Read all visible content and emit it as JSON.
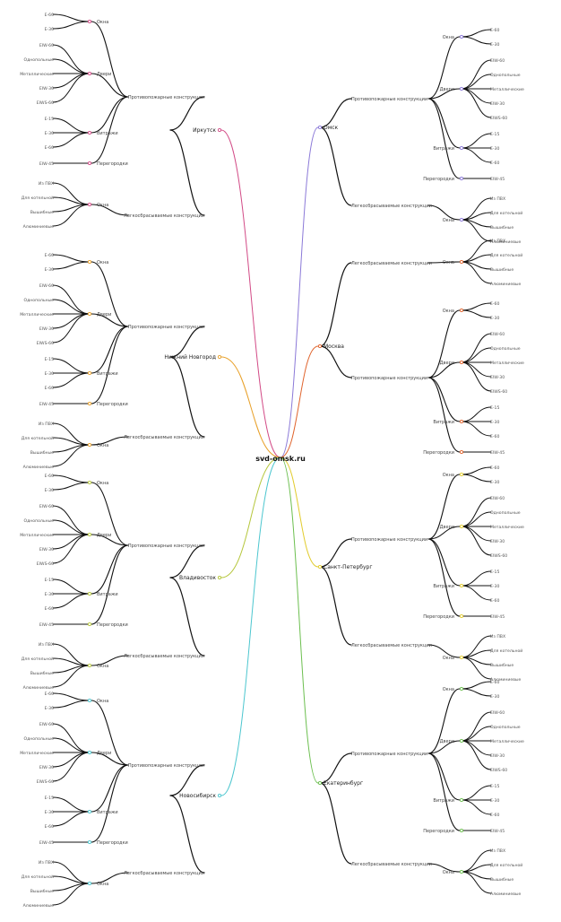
{
  "root": "svd-omsk.ru",
  "palette": {
    "Иркутск": "#d24a86",
    "Нижний Новгород": "#e8a12b",
    "Владивосток": "#b5c63b",
    "Новосибирск": "#4cc6cf",
    "Омск": "#8b79d8",
    "Москва": "#e0642d",
    "Санкт-Петербург": "#e2cc2f",
    "Екатеринбург": "#6cbf4f",
    "dot_red": "#e23a3a"
  },
  "tree": {
    "fire_label": "Противопожарные конструкции",
    "blast_label": "Легкосбрасываемые конструкции",
    "fire_children": [
      {
        "label": "Окна",
        "leaves": [
          "E-60",
          "E-30"
        ]
      },
      {
        "label": "Двери",
        "leaves": [
          "EIW-60",
          "Однопольные",
          "Металлические",
          "EIW-30",
          "EIWS-60"
        ]
      },
      {
        "label": "Витражи",
        "leaves": [
          "E-15",
          "E-30",
          "E-60"
        ]
      },
      {
        "label": "Перегородки",
        "leaves": [
          "EIW-45"
        ]
      }
    ],
    "blast_children": [
      {
        "label": "Окна",
        "leaves": [
          "Из ПВХ",
          "Для котельной",
          "Вышибные",
          "Алюминиевые"
        ]
      }
    ]
  },
  "cities": [
    {
      "name": "Иркутск",
      "side": "left"
    },
    {
      "name": "Нижний Новгород",
      "side": "left"
    },
    {
      "name": "Владивосток",
      "side": "left"
    },
    {
      "name": "Новосибирск",
      "side": "left"
    },
    {
      "name": "Омск",
      "side": "right"
    },
    {
      "name": "Москва",
      "side": "right"
    },
    {
      "name": "Санкт-Петербург",
      "side": "right"
    },
    {
      "name": "Екатеринбург",
      "side": "right"
    }
  ]
}
